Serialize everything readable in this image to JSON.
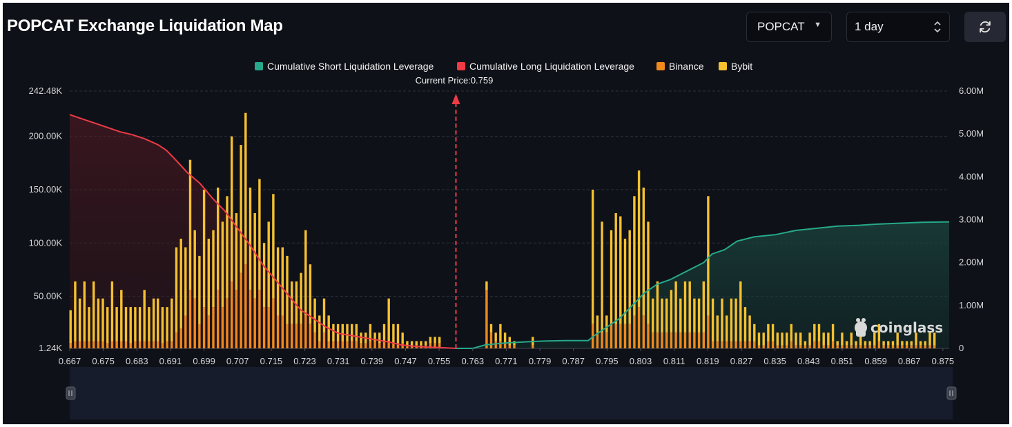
{
  "header": {
    "title": "POPCAT Exchange Liquidation Map",
    "coin_select": "POPCAT",
    "range_select": "1 day",
    "refresh_icon": "refresh-icon"
  },
  "watermark": "coinglass",
  "colors": {
    "short_line": "#26a98a",
    "long_line": "#ef3b46",
    "binance": "#f08a1c",
    "bybit": "#f5c12e",
    "background": "#0f1119"
  },
  "chart_data": {
    "type": "bar",
    "current_price_label": "Current Price:0.759",
    "current_price": 0.759,
    "legend": [
      {
        "label": "Cumulative Short Liquidation Leverage",
        "color": "#26a98a"
      },
      {
        "label": "Cumulative Long Liquidation Leverage",
        "color": "#ef3b46"
      },
      {
        "label": "Binance",
        "color": "#f08a1c"
      },
      {
        "label": "Bybit",
        "color": "#f5c12e"
      }
    ],
    "y_left_ticks": [
      "242.48K",
      "200.00K",
      "150.00K",
      "100.00K",
      "50.00K",
      "1.24K"
    ],
    "y_left_values": [
      242480,
      200000,
      150000,
      100000,
      50000,
      1240
    ],
    "y_right_ticks": [
      "6.00M",
      "5.00M",
      "4.00M",
      "3.00M",
      "2.00M",
      "1.00M",
      "0"
    ],
    "y_right_values": [
      6000000,
      5000000,
      4000000,
      3000000,
      2000000,
      1000000,
      0
    ],
    "x_ticks": [
      "0.667",
      "0.675",
      "0.683",
      "0.691",
      "0.699",
      "0.707",
      "0.715",
      "0.723",
      "0.731",
      "0.739",
      "0.747",
      "0.755",
      "0.763",
      "0.771",
      "0.779",
      "0.787",
      "0.795",
      "0.803",
      "0.811",
      "0.819",
      "0.827",
      "0.835",
      "0.843",
      "0.851",
      "0.859",
      "0.867",
      "0.875"
    ],
    "x_range": [
      0.667,
      0.8765
    ],
    "y_left_range": [
      1240,
      242480
    ],
    "y_right_range": [
      0,
      6000000
    ],
    "bars": [
      [
        0.6672,
        37,
        6
      ],
      [
        0.6683,
        64,
        8
      ],
      [
        0.6694,
        48,
        8
      ],
      [
        0.6705,
        64,
        8
      ],
      [
        0.6716,
        40,
        8
      ],
      [
        0.6727,
        64,
        8
      ],
      [
        0.6738,
        48,
        8
      ],
      [
        0.6749,
        48,
        8
      ],
      [
        0.676,
        40,
        6
      ],
      [
        0.6771,
        64,
        8
      ],
      [
        0.6782,
        40,
        8
      ],
      [
        0.6793,
        56,
        8
      ],
      [
        0.6804,
        40,
        8
      ],
      [
        0.6815,
        40,
        6
      ],
      [
        0.6826,
        40,
        8
      ],
      [
        0.6837,
        40,
        8
      ],
      [
        0.6848,
        56,
        8
      ],
      [
        0.6859,
        40,
        8
      ],
      [
        0.687,
        48,
        8
      ],
      [
        0.688,
        48,
        8
      ],
      [
        0.6891,
        40,
        6
      ],
      [
        0.6902,
        40,
        8
      ],
      [
        0.6913,
        48,
        8
      ],
      [
        0.6924,
        96,
        16
      ],
      [
        0.6935,
        104,
        20
      ],
      [
        0.6946,
        96,
        32
      ],
      [
        0.6957,
        178,
        56
      ],
      [
        0.6968,
        112,
        48
      ],
      [
        0.6979,
        88,
        24
      ],
      [
        0.699,
        150,
        40
      ],
      [
        0.7001,
        104,
        32
      ],
      [
        0.7012,
        112,
        40
      ],
      [
        0.7023,
        152,
        56
      ],
      [
        0.7034,
        120,
        40
      ],
      [
        0.7045,
        144,
        48
      ],
      [
        0.7056,
        200,
        64
      ],
      [
        0.7067,
        128,
        56
      ],
      [
        0.7078,
        192,
        72
      ],
      [
        0.7089,
        222,
        80
      ],
      [
        0.71,
        152,
        56
      ],
      [
        0.7111,
        128,
        48
      ],
      [
        0.7122,
        160,
        56
      ],
      [
        0.7133,
        100,
        40
      ],
      [
        0.7144,
        120,
        40
      ],
      [
        0.7155,
        146,
        48
      ],
      [
        0.7166,
        96,
        32
      ],
      [
        0.7177,
        96,
        32
      ],
      [
        0.7188,
        88,
        24
      ],
      [
        0.7199,
        64,
        24
      ],
      [
        0.721,
        64,
        24
      ],
      [
        0.7221,
        72,
        24
      ],
      [
        0.7232,
        112,
        32
      ],
      [
        0.7243,
        80,
        24
      ],
      [
        0.7254,
        48,
        16
      ],
      [
        0.7265,
        32,
        8
      ],
      [
        0.7276,
        48,
        16
      ],
      [
        0.7287,
        32,
        8
      ],
      [
        0.7298,
        24,
        8
      ],
      [
        0.7309,
        24,
        8
      ],
      [
        0.732,
        24,
        8
      ],
      [
        0.7331,
        24,
        8
      ],
      [
        0.7342,
        24,
        8
      ],
      [
        0.7353,
        24,
        8
      ],
      [
        0.7364,
        16,
        6
      ],
      [
        0.7375,
        16,
        6
      ],
      [
        0.7386,
        24,
        8
      ],
      [
        0.7397,
        16,
        8
      ],
      [
        0.7408,
        16,
        6
      ],
      [
        0.7419,
        24,
        8
      ],
      [
        0.743,
        48,
        8
      ],
      [
        0.7441,
        24,
        6
      ],
      [
        0.7452,
        24,
        6
      ],
      [
        0.7463,
        16,
        6
      ],
      [
        0.7474,
        8,
        4
      ],
      [
        0.7485,
        8,
        4
      ],
      [
        0.7496,
        8,
        4
      ],
      [
        0.7507,
        8,
        4
      ],
      [
        0.7518,
        8,
        4
      ],
      [
        0.7529,
        12,
        6
      ],
      [
        0.754,
        12,
        6
      ],
      [
        0.7551,
        12,
        6
      ],
      [
        0.7663,
        64,
        56
      ],
      [
        0.7674,
        24,
        16
      ],
      [
        0.7685,
        16,
        8
      ],
      [
        0.7696,
        24,
        8
      ],
      [
        0.7707,
        16,
        6
      ],
      [
        0.7718,
        12,
        4
      ],
      [
        0.7729,
        8,
        4
      ],
      [
        0.7773,
        12,
        4
      ],
      [
        0.7916,
        150,
        24
      ],
      [
        0.7927,
        32,
        16
      ],
      [
        0.7938,
        120,
        16
      ],
      [
        0.7949,
        32,
        16
      ],
      [
        0.796,
        112,
        24
      ],
      [
        0.7971,
        128,
        24
      ],
      [
        0.7982,
        125,
        24
      ],
      [
        0.7993,
        104,
        24
      ],
      [
        0.8004,
        112,
        24
      ],
      [
        0.8015,
        144,
        32
      ],
      [
        0.8026,
        168,
        40
      ],
      [
        0.8037,
        152,
        32
      ],
      [
        0.8048,
        120,
        24
      ],
      [
        0.8059,
        48,
        16
      ],
      [
        0.807,
        64,
        16
      ],
      [
        0.8081,
        48,
        16
      ],
      [
        0.8092,
        48,
        16
      ],
      [
        0.8103,
        56,
        16
      ],
      [
        0.8114,
        64,
        16
      ],
      [
        0.8125,
        48,
        16
      ],
      [
        0.8136,
        64,
        16
      ],
      [
        0.8147,
        64,
        16
      ],
      [
        0.8158,
        48,
        16
      ],
      [
        0.8169,
        48,
        16
      ],
      [
        0.818,
        64,
        16
      ],
      [
        0.8191,
        144,
        32
      ],
      [
        0.8202,
        48,
        8
      ],
      [
        0.8213,
        32,
        8
      ],
      [
        0.8224,
        48,
        8
      ],
      [
        0.8235,
        32,
        8
      ],
      [
        0.8246,
        48,
        8
      ],
      [
        0.8257,
        48,
        8
      ],
      [
        0.8268,
        64,
        8
      ],
      [
        0.8279,
        40,
        8
      ],
      [
        0.829,
        32,
        8
      ],
      [
        0.8301,
        24,
        8
      ],
      [
        0.8312,
        16,
        4
      ],
      [
        0.8323,
        16,
        4
      ],
      [
        0.8334,
        24,
        8
      ],
      [
        0.8345,
        24,
        8
      ],
      [
        0.8356,
        16,
        4
      ],
      [
        0.8367,
        16,
        4
      ],
      [
        0.8378,
        16,
        4
      ],
      [
        0.8389,
        24,
        8
      ],
      [
        0.84,
        16,
        4
      ],
      [
        0.8411,
        16,
        4
      ],
      [
        0.8422,
        8,
        4
      ],
      [
        0.8433,
        16,
        4
      ],
      [
        0.8444,
        24,
        8
      ],
      [
        0.8455,
        24,
        8
      ],
      [
        0.8466,
        16,
        4
      ],
      [
        0.8477,
        16,
        4
      ],
      [
        0.8488,
        24,
        8
      ],
      [
        0.8499,
        8,
        4
      ],
      [
        0.851,
        16,
        4
      ],
      [
        0.8521,
        8,
        4
      ],
      [
        0.8532,
        16,
        4
      ],
      [
        0.8543,
        8,
        4
      ],
      [
        0.8554,
        16,
        4
      ],
      [
        0.8565,
        8,
        4
      ],
      [
        0.8576,
        8,
        4
      ],
      [
        0.8587,
        16,
        4
      ],
      [
        0.8598,
        24,
        8
      ],
      [
        0.8609,
        8,
        4
      ],
      [
        0.862,
        8,
        4
      ],
      [
        0.8631,
        8,
        4
      ],
      [
        0.8642,
        16,
        4
      ],
      [
        0.8653,
        8,
        4
      ],
      [
        0.8664,
        8,
        4
      ],
      [
        0.8675,
        8,
        4
      ],
      [
        0.8686,
        16,
        4
      ],
      [
        0.8697,
        8,
        4
      ],
      [
        0.8708,
        8,
        4
      ],
      [
        0.8719,
        16,
        4
      ],
      [
        0.873,
        16,
        4
      ]
    ],
    "long_cumulative": [
      [
        0.667,
        5.45
      ],
      [
        0.67,
        5.35
      ],
      [
        0.673,
        5.25
      ],
      [
        0.676,
        5.15
      ],
      [
        0.679,
        5.05
      ],
      [
        0.682,
        4.98
      ],
      [
        0.685,
        4.88
      ],
      [
        0.688,
        4.75
      ],
      [
        0.69,
        4.62
      ],
      [
        0.692,
        4.42
      ],
      [
        0.695,
        4.1
      ],
      [
        0.698,
        3.85
      ],
      [
        0.701,
        3.5
      ],
      [
        0.704,
        3.2
      ],
      [
        0.707,
        2.8
      ],
      [
        0.71,
        2.4
      ],
      [
        0.713,
        1.95
      ],
      [
        0.716,
        1.6
      ],
      [
        0.719,
        1.25
      ],
      [
        0.722,
        0.9
      ],
      [
        0.725,
        0.7
      ],
      [
        0.728,
        0.5
      ],
      [
        0.731,
        0.35
      ],
      [
        0.734,
        0.3
      ],
      [
        0.737,
        0.25
      ],
      [
        0.74,
        0.2
      ],
      [
        0.743,
        0.15
      ],
      [
        0.746,
        0.08
      ],
      [
        0.749,
        0.05
      ],
      [
        0.752,
        0.03
      ],
      [
        0.755,
        0.02
      ],
      [
        0.759,
        0.0
      ]
    ],
    "short_cumulative": [
      [
        0.759,
        0.0
      ],
      [
        0.763,
        0.0
      ],
      [
        0.766,
        0.08
      ],
      [
        0.77,
        0.12
      ],
      [
        0.775,
        0.15
      ],
      [
        0.78,
        0.17
      ],
      [
        0.785,
        0.18
      ],
      [
        0.7905,
        0.18
      ],
      [
        0.792,
        0.3
      ],
      [
        0.795,
        0.5
      ],
      [
        0.798,
        0.7
      ],
      [
        0.801,
        1.0
      ],
      [
        0.804,
        1.3
      ],
      [
        0.807,
        1.5
      ],
      [
        0.81,
        1.6
      ],
      [
        0.813,
        1.75
      ],
      [
        0.816,
        1.9
      ],
      [
        0.818,
        2.0
      ],
      [
        0.82,
        2.2
      ],
      [
        0.823,
        2.3
      ],
      [
        0.826,
        2.5
      ],
      [
        0.83,
        2.6
      ],
      [
        0.835,
        2.65
      ],
      [
        0.84,
        2.75
      ],
      [
        0.845,
        2.8
      ],
      [
        0.85,
        2.85
      ],
      [
        0.855,
        2.87
      ],
      [
        0.86,
        2.9
      ],
      [
        0.865,
        2.92
      ],
      [
        0.87,
        2.94
      ],
      [
        0.8765,
        2.95
      ]
    ]
  }
}
